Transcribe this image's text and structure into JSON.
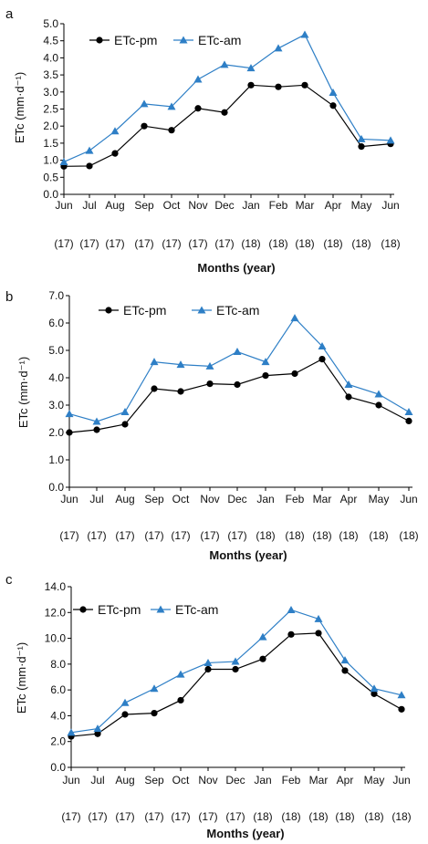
{
  "chart_data": [
    {
      "type": "line",
      "panel": "a",
      "categories": [
        "Jun",
        "Jul",
        "Aug",
        "Sep",
        "Oct",
        "Nov",
        "Dec",
        "Jan",
        "Feb",
        "Mar",
        "Apr",
        "May",
        "Jun"
      ],
      "years": [
        "(17)",
        "(17)",
        "(17)",
        "(17)",
        "(17)",
        "(17)",
        "(17)",
        "(18)",
        "(18)",
        "(18)",
        "(18)",
        "(18)",
        "(18)"
      ],
      "series": [
        {
          "name": "ETc-pm",
          "color": "#000000",
          "marker": "circle",
          "values": [
            0.82,
            0.83,
            1.2,
            2.0,
            1.88,
            2.52,
            2.4,
            3.2,
            3.15,
            3.2,
            2.6,
            1.4,
            1.48
          ]
        },
        {
          "name": "ETc-am",
          "color": "#2e7fc6",
          "marker": "triangle",
          "values": [
            0.95,
            1.28,
            1.85,
            2.65,
            2.57,
            3.37,
            3.8,
            3.7,
            4.28,
            4.68,
            2.98,
            1.62,
            1.58
          ]
        }
      ],
      "ylim": [
        0,
        5.0
      ],
      "yticks": [
        "0.0",
        "0.5",
        "1.0",
        "1.5",
        "2.0",
        "2.5",
        "3.0",
        "3.5",
        "4.0",
        "4.5",
        "5.0"
      ],
      "xlabel": "Months (year)",
      "ylabel": "ETc (mm·d⁻¹)",
      "legend": "top-left"
    },
    {
      "type": "line",
      "panel": "b",
      "categories": [
        "Jun",
        "Jul",
        "Aug",
        "Sep",
        "Oct",
        "Nov",
        "Dec",
        "Jan",
        "Feb",
        "Mar",
        "Apr",
        "May",
        "Jun"
      ],
      "years": [
        "(17)",
        "(17)",
        "(17)",
        "(17)",
        "(17)",
        "(17)",
        "(17)",
        "(18)",
        "(18)",
        "(18)",
        "(18)",
        "(18)",
        "(18)"
      ],
      "series": [
        {
          "name": "ETc-pm",
          "color": "#000000",
          "marker": "circle",
          "values": [
            2.0,
            2.1,
            2.3,
            3.6,
            3.5,
            3.78,
            3.75,
            4.08,
            4.15,
            4.68,
            3.3,
            3.0,
            2.42
          ]
        },
        {
          "name": "ETc-am",
          "color": "#2e7fc6",
          "marker": "triangle",
          "values": [
            2.68,
            2.4,
            2.75,
            4.58,
            4.48,
            4.42,
            4.95,
            4.58,
            6.18,
            5.15,
            3.75,
            3.4,
            2.75
          ]
        }
      ],
      "ylim": [
        0,
        7.0
      ],
      "yticks": [
        "0.0",
        "1.0",
        "2.0",
        "3.0",
        "4.0",
        "5.0",
        "6.0",
        "7.0"
      ],
      "xlabel": "Months (year)",
      "ylabel": "ETc (mm·d⁻¹)",
      "legend": "top-left"
    },
    {
      "type": "line",
      "panel": "c",
      "categories": [
        "Jun",
        "Jul",
        "Aug",
        "Sep",
        "Oct",
        "Nov",
        "Dec",
        "Jan",
        "Feb",
        "Mar",
        "Apr",
        "May",
        "Jun"
      ],
      "years": [
        "(17)",
        "(17)",
        "(17)",
        "(17)",
        "(17)",
        "(17)",
        "(17)",
        "(18)",
        "(18)",
        "(18)",
        "(18)",
        "(18)",
        "(18)"
      ],
      "series": [
        {
          "name": "ETc-pm",
          "color": "#000000",
          "marker": "circle",
          "values": [
            2.4,
            2.6,
            4.1,
            4.2,
            5.2,
            7.6,
            7.6,
            8.4,
            10.3,
            10.4,
            7.5,
            5.7,
            4.5
          ]
        },
        {
          "name": "ETc-am",
          "color": "#2e7fc6",
          "marker": "triangle",
          "values": [
            2.7,
            3.0,
            5.0,
            6.1,
            7.2,
            8.1,
            8.2,
            10.1,
            12.2,
            11.5,
            8.3,
            6.1,
            5.6
          ]
        }
      ],
      "ylim": [
        0,
        14.0
      ],
      "yticks": [
        "0.0",
        "2.0",
        "4.0",
        "6.0",
        "8.0",
        "10.0",
        "12.0",
        "14.0"
      ],
      "xlabel": "Months (year)",
      "ylabel": "ETc (mm·d⁻¹)",
      "legend": "top-left"
    }
  ]
}
